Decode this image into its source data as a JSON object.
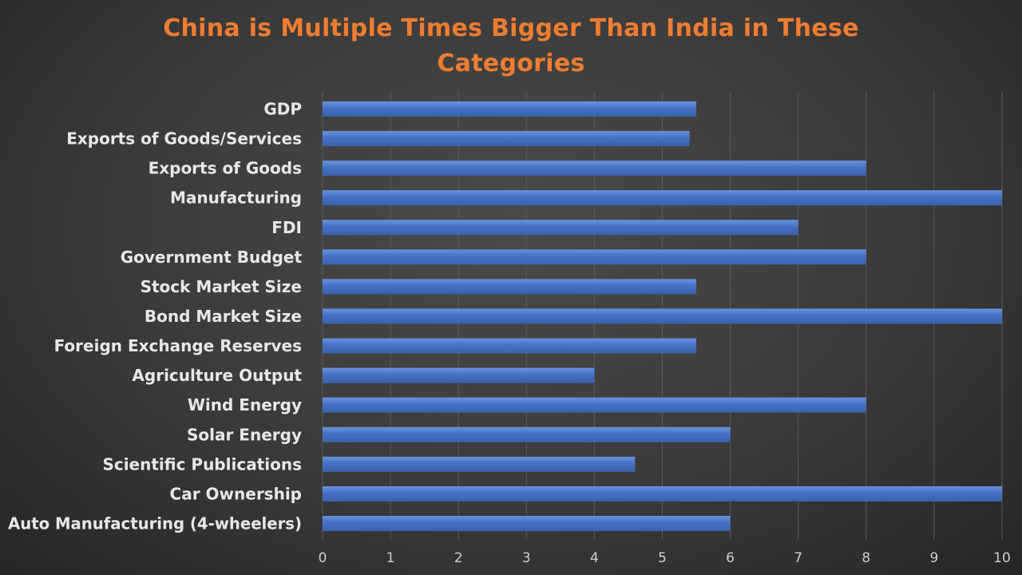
{
  "chart_data": {
    "type": "bar",
    "orientation": "horizontal",
    "title": "China is Multiple Times Bigger Than India in These Categories",
    "categories": [
      "GDP",
      "Exports of Goods/Services",
      "Exports of Goods",
      "Manufacturing",
      "FDI",
      "Government Budget",
      "Stock Market Size",
      "Bond Market Size",
      "Foreign Exchange Reserves",
      "Agriculture Output",
      "Wind Energy",
      "Solar Energy",
      "Scientific Publications",
      "Car Ownership",
      "Auto Manufacturing (4-wheelers)"
    ],
    "values": [
      5.5,
      5.4,
      8,
      10,
      7,
      8,
      5.5,
      10,
      5.5,
      4,
      8,
      6,
      4.6,
      10,
      6
    ],
    "xlim": [
      0,
      10
    ],
    "xticks": [
      0,
      1,
      2,
      3,
      4,
      5,
      6,
      7,
      8,
      9,
      10
    ],
    "xlabel": "",
    "ylabel": "",
    "grid": "vertical",
    "legend": "none",
    "colors": {
      "title": "#ee7d31",
      "bar": "#4472c4",
      "bar_highlight": "#6a93de",
      "label": "#e8e8e8",
      "grid": "#5a5a5a",
      "background": "#3a3a3a"
    }
  }
}
